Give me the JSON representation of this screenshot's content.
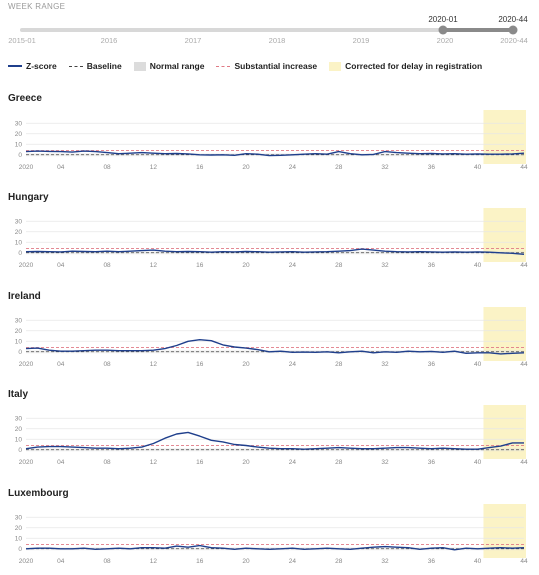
{
  "week_range": {
    "label": "WEEK RANGE",
    "years": [
      "2015-01",
      "2016",
      "2017",
      "2018",
      "2019",
      "2020",
      "2020-44"
    ],
    "selected_start": "2020-01",
    "selected_end": "2020-44"
  },
  "legend": {
    "zscore": "Z-score",
    "baseline": "Baseline",
    "normal": "Normal range",
    "substantial": "Substantial increase",
    "corrected": "Corrected for delay in registration"
  },
  "colors": {
    "zscore": "#1f3f8c",
    "baseline": "#444444",
    "substantial": "#e07a85",
    "corrected": "#fbf3c6",
    "normal": "#dcdcdc",
    "grid": "#e6e6e6"
  },
  "chart_data": [
    {
      "type": "line",
      "title": "Greece",
      "x_ticks": [
        "2020",
        "04",
        "08",
        "12",
        "16",
        "20",
        "24",
        "28",
        "32",
        "36",
        "40",
        "44"
      ],
      "y_ticks": [
        0,
        10,
        20,
        30
      ],
      "ylim": [
        -5,
        35
      ],
      "xlim": [
        1,
        44
      ],
      "baseline": 0,
      "substantial_increase": 4,
      "corrected_from_week": 41,
      "series": [
        {
          "x": [
            1,
            2,
            3,
            4,
            5,
            6,
            7,
            8,
            9,
            10,
            11,
            12,
            13,
            14,
            15,
            16,
            17,
            18,
            19,
            20,
            21,
            22,
            23,
            24,
            25,
            26,
            27,
            28,
            29,
            30,
            31,
            32,
            33,
            34,
            35,
            36,
            37,
            38,
            39,
            40,
            41,
            42,
            43,
            44
          ],
          "values": [
            3,
            3.5,
            3.2,
            3,
            2.5,
            3.5,
            3,
            2,
            1,
            1.5,
            2,
            1.5,
            1,
            1.2,
            0.8,
            0,
            -0.2,
            0,
            -0.5,
            1,
            0.5,
            -0.8,
            -0.5,
            0,
            0.5,
            1,
            0.5,
            3,
            1,
            0,
            0.3,
            3,
            2,
            1.5,
            1,
            1.2,
            0.8,
            1,
            0.5,
            0.8,
            0.5,
            0.5,
            0.8,
            1.5
          ]
        }
      ]
    },
    {
      "type": "line",
      "title": "Hungary",
      "x_ticks": [
        "2020",
        "04",
        "08",
        "12",
        "16",
        "20",
        "24",
        "28",
        "32",
        "36",
        "40",
        "44"
      ],
      "y_ticks": [
        0,
        10,
        20,
        30
      ],
      "ylim": [
        -5,
        35
      ],
      "xlim": [
        1,
        44
      ],
      "baseline": 0,
      "substantial_increase": 4,
      "corrected_from_week": 41,
      "series": [
        {
          "x": [
            1,
            2,
            3,
            4,
            5,
            6,
            7,
            8,
            9,
            10,
            11,
            12,
            13,
            14,
            15,
            16,
            17,
            18,
            19,
            20,
            21,
            22,
            23,
            24,
            25,
            26,
            27,
            28,
            29,
            30,
            31,
            32,
            33,
            34,
            35,
            36,
            37,
            38,
            39,
            40,
            41,
            42,
            43,
            44
          ],
          "values": [
            1,
            1.2,
            1,
            0.8,
            1.5,
            1.2,
            1,
            1.5,
            1,
            1.5,
            2,
            2.5,
            1.5,
            1,
            1.2,
            1,
            0.5,
            1,
            0.8,
            1.2,
            1,
            0.5,
            0.8,
            1,
            0.5,
            0.8,
            1,
            1.5,
            2,
            3.5,
            2.5,
            1.5,
            1,
            0.8,
            1,
            0.8,
            0.5,
            0.8,
            0.5,
            0.8,
            0.5,
            0,
            -0.5,
            -1.5
          ]
        }
      ]
    },
    {
      "type": "line",
      "title": "Ireland",
      "x_ticks": [
        "2020",
        "04",
        "08",
        "12",
        "16",
        "20",
        "24",
        "28",
        "32",
        "36",
        "40",
        "44"
      ],
      "y_ticks": [
        0,
        10,
        20,
        30
      ],
      "ylim": [
        -5,
        35
      ],
      "xlim": [
        1,
        44
      ],
      "baseline": 0,
      "substantial_increase": 4,
      "corrected_from_week": 41,
      "series": [
        {
          "x": [
            1,
            2,
            3,
            4,
            5,
            6,
            7,
            8,
            9,
            10,
            11,
            12,
            13,
            14,
            15,
            16,
            17,
            18,
            19,
            20,
            21,
            22,
            23,
            24,
            25,
            26,
            27,
            28,
            29,
            30,
            31,
            32,
            33,
            34,
            35,
            36,
            37,
            38,
            39,
            40,
            41,
            42,
            43,
            44
          ],
          "values": [
            3,
            3.5,
            1.5,
            0.5,
            0.5,
            1,
            1.5,
            1.5,
            1,
            1,
            1,
            1.5,
            3,
            6,
            10,
            11.5,
            10.5,
            6.5,
            4.5,
            3.5,
            2,
            0,
            0.5,
            -0.5,
            -0.3,
            -0.5,
            0,
            -1,
            0,
            0.5,
            -1,
            0,
            -0.5,
            0.5,
            0,
            0.3,
            -0.5,
            0.5,
            -1.5,
            -1,
            -1,
            -2,
            -1.5,
            -1
          ]
        }
      ]
    },
    {
      "type": "line",
      "title": "Italy",
      "x_ticks": [
        "2020",
        "04",
        "08",
        "12",
        "16",
        "20",
        "24",
        "28",
        "32",
        "36",
        "40",
        "44"
      ],
      "y_ticks": [
        0,
        10,
        20,
        30
      ],
      "ylim": [
        -5,
        35
      ],
      "xlim": [
        1,
        44
      ],
      "baseline": 0,
      "substantial_increase": 4,
      "corrected_from_week": 41,
      "series": [
        {
          "x": [
            1,
            2,
            3,
            4,
            5,
            6,
            7,
            8,
            9,
            10,
            11,
            12,
            13,
            14,
            15,
            16,
            17,
            18,
            19,
            20,
            21,
            22,
            23,
            24,
            25,
            26,
            27,
            28,
            29,
            30,
            31,
            32,
            33,
            34,
            35,
            36,
            37,
            38,
            39,
            40,
            41,
            42,
            43,
            44
          ],
          "values": [
            1,
            2.5,
            3,
            3,
            2.5,
            2,
            1.5,
            1.5,
            1,
            1.5,
            2.5,
            6,
            11,
            15,
            16.5,
            13,
            9,
            7.5,
            5,
            4,
            2.5,
            1.5,
            1,
            1,
            0.5,
            1,
            1.5,
            2,
            1.5,
            1,
            1,
            1.5,
            2,
            2,
            1.5,
            1,
            1.5,
            1,
            0.5,
            0.5,
            2,
            3.5,
            6.5,
            6.5
          ]
        }
      ]
    },
    {
      "type": "line",
      "title": "Luxembourg",
      "x_ticks": [
        "2020",
        "04",
        "08",
        "12",
        "16",
        "20",
        "24",
        "28",
        "32",
        "36",
        "40",
        "44"
      ],
      "y_ticks": [
        0,
        10,
        20,
        30
      ],
      "ylim": [
        -5,
        35
      ],
      "xlim": [
        1,
        44
      ],
      "baseline": 0,
      "substantial_increase": 4,
      "corrected_from_week": 41,
      "series": [
        {
          "x": [
            1,
            2,
            3,
            4,
            5,
            6,
            7,
            8,
            9,
            10,
            11,
            12,
            13,
            14,
            15,
            16,
            17,
            18,
            19,
            20,
            21,
            22,
            23,
            24,
            25,
            26,
            27,
            28,
            29,
            30,
            31,
            32,
            33,
            34,
            35,
            36,
            37,
            38,
            39,
            40,
            41,
            42,
            43,
            44
          ],
          "values": [
            0,
            0.5,
            0.5,
            0,
            0,
            0.5,
            -0.5,
            0,
            0.5,
            0,
            1,
            1,
            0.5,
            2.5,
            1.5,
            3,
            1,
            0.5,
            -0.5,
            0.5,
            0,
            -0.5,
            0,
            0.5,
            -0.5,
            0,
            0.5,
            0,
            -0.5,
            0.5,
            1.5,
            2,
            1.5,
            1,
            -0.5,
            0.5,
            1,
            -1,
            0.5,
            0,
            0.5,
            1,
            0.5,
            1
          ]
        }
      ]
    }
  ]
}
